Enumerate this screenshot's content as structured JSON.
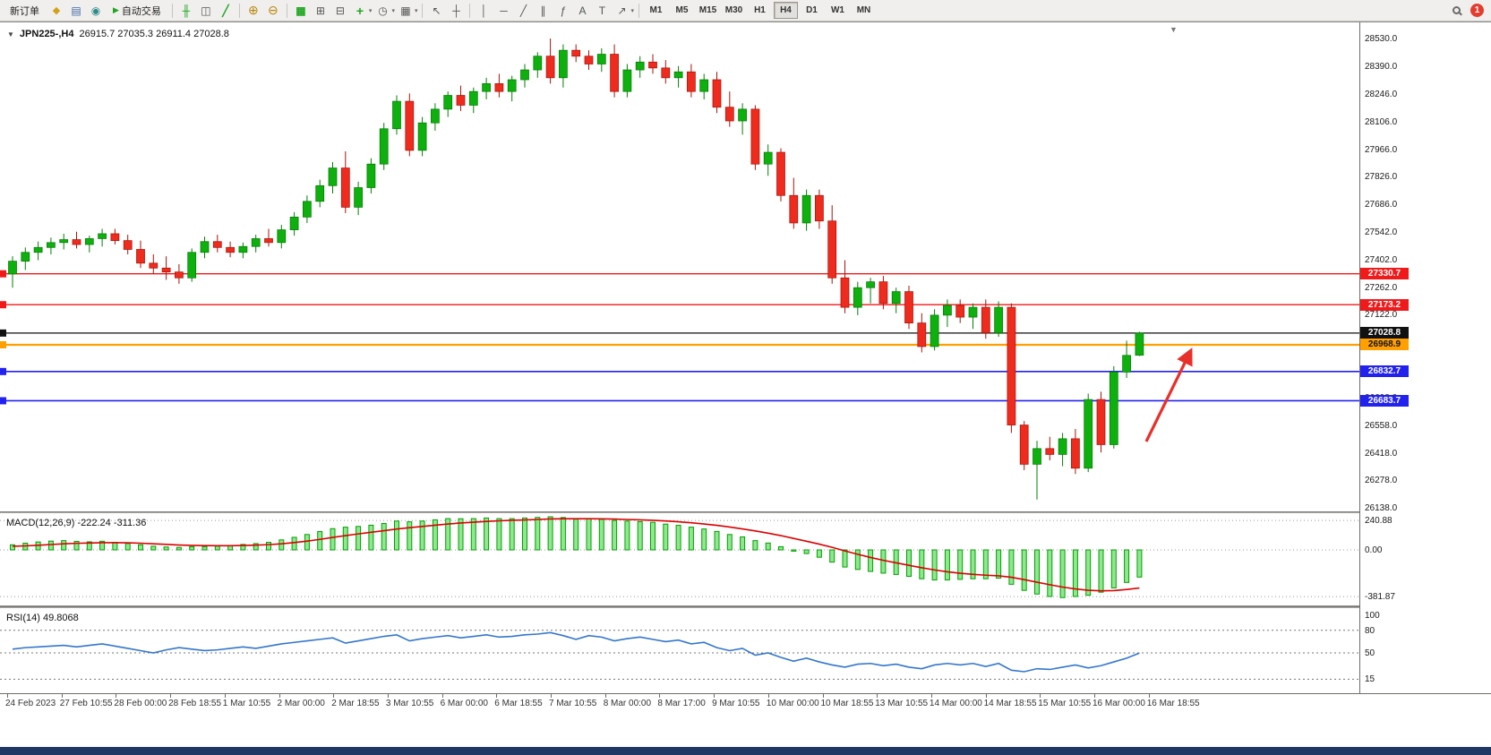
{
  "toolbar": {
    "new_order": "新订单",
    "autotrading": "自动交易",
    "timeframes": [
      "M1",
      "M5",
      "M15",
      "M30",
      "H1",
      "H4",
      "D1",
      "W1",
      "MN"
    ],
    "active_timeframe": "H4",
    "notification_badge": "1"
  },
  "icons": {
    "chart_menu": "▼",
    "market_watch": "◆",
    "data_window": "▤",
    "navigator": "◉",
    "autotrading_play": "▶",
    "bar_chart": "╫",
    "candlestick": "◫",
    "line_chart": "╱",
    "zoom_in": "⊕",
    "zoom_out": "⊖",
    "tile_windows": "⊞",
    "cascade_windows": "⊟",
    "indicators_plus": "+",
    "periods_clock": "◷",
    "template": "▦",
    "cursor": "↖",
    "crosshair": "┼",
    "vline": "│",
    "hline": "─",
    "trendline": "╱",
    "channel": "∥",
    "fibonacci": "ƒ",
    "text_tool": "A",
    "label_tool": "T",
    "arrows_tool": "↗",
    "dropdown": "▾",
    "shift_marker": "▼"
  },
  "chart": {
    "title_symbol": "JPN225-,H4",
    "title_ohlc": "26915.7 27035.3 26911.4 27028.8",
    "price_axis_values": [
      28530,
      28390,
      28246,
      28106,
      27966,
      27826,
      27686,
      27542,
      27402,
      27262,
      27122,
      26978,
      26838,
      26698,
      26558,
      26418,
      26278,
      26138
    ],
    "price_axis_labels": [
      "28530.0",
      "28390.0",
      "28246.0",
      "28106.0",
      "27966.0",
      "27826.0",
      "27686.0",
      "27542.0",
      "27402.0",
      "27262.0",
      "27122.0",
      "26978.0",
      "26838.0",
      "26698.0",
      "26558.0",
      "26418.0",
      "26278.0",
      "26138.0"
    ],
    "time_axis_labels": [
      "24 Feb 2023",
      "27 Feb 10:55",
      "28 Feb 00:00",
      "28 Feb 18:55",
      "1 Mar 10:55",
      "2 Mar 00:00",
      "2 Mar 18:55",
      "3 Mar 10:55",
      "6 Mar 00:00",
      "6 Mar 18:55",
      "7 Mar 10:55",
      "8 Mar 00:00",
      "8 Mar 17:00",
      "9 Mar 10:55",
      "10 Mar 00:00",
      "10 Mar 18:55",
      "13 Mar 10:55",
      "14 Mar 00:00",
      "14 Mar 18:55",
      "15 Mar 10:55",
      "16 Mar 00:00",
      "16 Mar 18:55"
    ],
    "hlines": [
      {
        "price": 27330.7,
        "label": "27330.7",
        "color": "#f11a1a",
        "width": 1.4
      },
      {
        "price": 27173.2,
        "label": "27173.2",
        "color": "#f11a1a",
        "width": 1.4
      },
      {
        "price": 27028.8,
        "label": "27028.8",
        "color": "#111111",
        "width": 1.2
      },
      {
        "price": 26968.9,
        "label": "26968.9",
        "color": "#ff9f00",
        "width": 2.2
      },
      {
        "price": 26832.7,
        "label": "26832.7",
        "color": "#2222ee",
        "width": 1.6
      },
      {
        "price": 26683.7,
        "label": "26683.7",
        "color": "#2222ee",
        "width": 1.6
      }
    ],
    "colors": {
      "up": "#0db00d",
      "up_dark": "#067d06",
      "down": "#ef2b1e",
      "down_dark": "#a81409",
      "macd_hist_fill": "#8fe88f",
      "macd_hist_stroke": "#00a000",
      "macd_signal": "#dd0000",
      "rsi_line": "#3377cc",
      "arrow": "#e8302a",
      "grid_dotted": "#999999"
    }
  },
  "macd_panel": {
    "label": "MACD(12,26,9)",
    "value_main": "-222.24",
    "value_signal": "-311.36",
    "axis_labels": [
      "240.88",
      "0.00",
      "-381.87"
    ],
    "axis_values": [
      240.88,
      0,
      -381.87
    ]
  },
  "rsi_panel": {
    "label": "RSI(14)",
    "value": "49.8068",
    "axis_labels": [
      "100",
      "80",
      "50",
      "15"
    ],
    "axis_values": [
      100,
      80,
      50,
      15
    ],
    "levels": [
      80,
      50,
      15
    ]
  },
  "chart_data": [
    {
      "type": "candlestick",
      "symbol": "JPN225-",
      "timeframe": "H4",
      "title": "JPN225-,H4",
      "open": 26915.7,
      "high": 27035.3,
      "low": 26911.4,
      "close": 27028.8,
      "ylim": [
        26138,
        28530
      ],
      "x_labels": [
        "24 Feb 2023",
        "27 Feb 10:55",
        "28 Feb 00:00",
        "28 Feb 18:55",
        "1 Mar 10:55",
        "2 Mar 00:00",
        "2 Mar 18:55",
        "3 Mar 10:55",
        "6 Mar 00:00",
        "6 Mar 18:55",
        "7 Mar 10:55",
        "8 Mar 00:00",
        "8 Mar 17:00",
        "9 Mar 10:55",
        "10 Mar 00:00",
        "10 Mar 18:55",
        "13 Mar 10:55",
        "14 Mar 00:00",
        "14 Mar 18:55",
        "15 Mar 10:55",
        "16 Mar 00:00",
        "16 Mar 18:55"
      ],
      "ohlc": [
        [
          27330,
          27420,
          27260,
          27395
        ],
        [
          27395,
          27465,
          27350,
          27440
        ],
        [
          27440,
          27495,
          27400,
          27465
        ],
        [
          27465,
          27515,
          27430,
          27490
        ],
        [
          27490,
          27535,
          27455,
          27505
        ],
        [
          27505,
          27545,
          27460,
          27480
        ],
        [
          27480,
          27525,
          27440,
          27510
        ],
        [
          27510,
          27560,
          27470,
          27535
        ],
        [
          27535,
          27560,
          27480,
          27500
        ],
        [
          27500,
          27530,
          27430,
          27455
        ],
        [
          27455,
          27500,
          27360,
          27385
        ],
        [
          27385,
          27430,
          27330,
          27360
        ],
        [
          27360,
          27420,
          27300,
          27340
        ],
        [
          27340,
          27380,
          27280,
          27310
        ],
        [
          27310,
          27460,
          27290,
          27440
        ],
        [
          27440,
          27520,
          27410,
          27495
        ],
        [
          27495,
          27530,
          27440,
          27465
        ],
        [
          27465,
          27495,
          27415,
          27440
        ],
        [
          27440,
          27490,
          27410,
          27470
        ],
        [
          27470,
          27530,
          27440,
          27510
        ],
        [
          27510,
          27560,
          27470,
          27490
        ],
        [
          27490,
          27580,
          27460,
          27555
        ],
        [
          27555,
          27645,
          27525,
          27620
        ],
        [
          27620,
          27730,
          27590,
          27700
        ],
        [
          27700,
          27810,
          27670,
          27780
        ],
        [
          27780,
          27900,
          27740,
          27870
        ],
        [
          27870,
          27955,
          27640,
          27670
        ],
        [
          27670,
          27800,
          27630,
          27770
        ],
        [
          27770,
          27920,
          27740,
          27890
        ],
        [
          27890,
          28100,
          27860,
          28070
        ],
        [
          28070,
          28240,
          28040,
          28210
        ],
        [
          28210,
          28250,
          27930,
          27960
        ],
        [
          27960,
          28130,
          27930,
          28100
        ],
        [
          28100,
          28200,
          28060,
          28170
        ],
        [
          28170,
          28260,
          28130,
          28240
        ],
        [
          28240,
          28290,
          28160,
          28190
        ],
        [
          28190,
          28280,
          28150,
          28260
        ],
        [
          28260,
          28330,
          28220,
          28300
        ],
        [
          28300,
          28350,
          28230,
          28260
        ],
        [
          28260,
          28340,
          28210,
          28320
        ],
        [
          28320,
          28400,
          28280,
          28370
        ],
        [
          28370,
          28460,
          28330,
          28440
        ],
        [
          28440,
          28530,
          28300,
          28330
        ],
        [
          28330,
          28500,
          28280,
          28470
        ],
        [
          28470,
          28500,
          28410,
          28440
        ],
        [
          28440,
          28470,
          28370,
          28400
        ],
        [
          28400,
          28480,
          28360,
          28450
        ],
        [
          28450,
          28500,
          28230,
          28260
        ],
        [
          28260,
          28400,
          28230,
          28370
        ],
        [
          28370,
          28440,
          28330,
          28410
        ],
        [
          28410,
          28450,
          28350,
          28380
        ],
        [
          28380,
          28420,
          28300,
          28330
        ],
        [
          28330,
          28390,
          28280,
          28360
        ],
        [
          28360,
          28400,
          28230,
          28260
        ],
        [
          28260,
          28350,
          28220,
          28320
        ],
        [
          28320,
          28360,
          28150,
          28180
        ],
        [
          28180,
          28260,
          28080,
          28110
        ],
        [
          28110,
          28200,
          28040,
          28170
        ],
        [
          28170,
          28190,
          27860,
          27890
        ],
        [
          27890,
          27990,
          27830,
          27950
        ],
        [
          27950,
          27970,
          27700,
          27730
        ],
        [
          27730,
          27820,
          27560,
          27590
        ],
        [
          27590,
          27760,
          27550,
          27730
        ],
        [
          27730,
          27760,
          27560,
          27600
        ],
        [
          27600,
          27680,
          27280,
          27310
        ],
        [
          27310,
          27400,
          27130,
          27160
        ],
        [
          27160,
          27290,
          27120,
          27260
        ],
        [
          27260,
          27310,
          27180,
          27290
        ],
        [
          27290,
          27320,
          27150,
          27180
        ],
        [
          27180,
          27260,
          27130,
          27240
        ],
        [
          27240,
          27270,
          27050,
          27080
        ],
        [
          27080,
          27130,
          26930,
          26960
        ],
        [
          26960,
          27150,
          26940,
          27120
        ],
        [
          27120,
          27200,
          27060,
          27170
        ],
        [
          27170,
          27200,
          27080,
          27110
        ],
        [
          27110,
          27180,
          27050,
          27160
        ],
        [
          27160,
          27200,
          27000,
          27030
        ],
        [
          27030,
          27190,
          27010,
          27160
        ],
        [
          27160,
          27180,
          26520,
          26560
        ],
        [
          26560,
          26580,
          26330,
          26360
        ],
        [
          26360,
          26480,
          26180,
          26440
        ],
        [
          26440,
          26500,
          26380,
          26410
        ],
        [
          26410,
          26520,
          26350,
          26490
        ],
        [
          26490,
          26540,
          26310,
          26340
        ],
        [
          26340,
          26720,
          26320,
          26690
        ],
        [
          26690,
          26730,
          26420,
          26460
        ],
        [
          26460,
          26860,
          26440,
          26830
        ],
        [
          26830,
          26990,
          26800,
          26915
        ],
        [
          26915.7,
          27035.3,
          26911.4,
          27028.8
        ]
      ],
      "hlines": [
        27330.7,
        27173.2,
        27028.8,
        26968.9,
        26832.7,
        26683.7
      ],
      "annotation": {
        "type": "arrow-up-right",
        "color": "#e8302a"
      }
    },
    {
      "type": "bar",
      "name": "MACD(12,26,9)",
      "current_macd": -222.24,
      "current_signal": -311.36,
      "ylim": [
        -430,
        300
      ],
      "axis_ticks": [
        240.88,
        0.0,
        -381.87
      ],
      "values": [
        42,
        55,
        65,
        72,
        76,
        70,
        66,
        71,
        62,
        52,
        42,
        30,
        24,
        20,
        26,
        27,
        31,
        36,
        45,
        52,
        62,
        82,
        103,
        126,
        150,
        174,
        186,
        192,
        202,
        216,
        236,
        230,
        236,
        246,
        256,
        255,
        256,
        261,
        256,
        256,
        261,
        266,
        271,
        265,
        251,
        256,
        250,
        241,
        236,
        231,
        226,
        211,
        201,
        186,
        171,
        151,
        126,
        106,
        76,
        56,
        26,
        -10,
        -30,
        -60,
        -100,
        -140,
        -160,
        -176,
        -190,
        -201,
        -216,
        -236,
        -246,
        -246,
        -241,
        -236,
        -236,
        -231,
        -281,
        -331,
        -361,
        -381,
        -390,
        -381,
        -371,
        -346,
        -311,
        -266,
        -222.24
      ],
      "signal": [
        30,
        33,
        38,
        44,
        50,
        54,
        56,
        59,
        59,
        58,
        55,
        50,
        45,
        40,
        37,
        35,
        34,
        34,
        36,
        39,
        43,
        50,
        60,
        72,
        86,
        102,
        117,
        131,
        144,
        157,
        171,
        182,
        192,
        202,
        212,
        220,
        227,
        233,
        238,
        242,
        245,
        249,
        253,
        255,
        255,
        255,
        254,
        252,
        249,
        246,
        242,
        237,
        230,
        222,
        212,
        201,
        187,
        172,
        155,
        137,
        117,
        94,
        71,
        47,
        21,
        -8,
        -36,
        -62,
        -85,
        -106,
        -126,
        -146,
        -164,
        -179,
        -191,
        -200,
        -207,
        -212,
        -224,
        -243,
        -264,
        -285,
        -304,
        -319,
        -330,
        -335,
        -333,
        -324,
        -311.36
      ]
    },
    {
      "type": "line",
      "name": "RSI(14)",
      "current": 49.8068,
      "ylim": [
        0,
        100
      ],
      "levels": [
        80,
        50,
        15
      ],
      "axis_ticks": [
        100,
        80,
        50,
        15
      ],
      "values": [
        55,
        57,
        58,
        59,
        60,
        58,
        60,
        62,
        59,
        56,
        53,
        50,
        54,
        57,
        55,
        53,
        54,
        56,
        58,
        56,
        59,
        62,
        64,
        66,
        68,
        70,
        63,
        66,
        69,
        72,
        74,
        66,
        69,
        71,
        73,
        70,
        72,
        74,
        71,
        72,
        74,
        75,
        77,
        73,
        68,
        73,
        71,
        66,
        69,
        71,
        68,
        65,
        67,
        62,
        64,
        57,
        53,
        56,
        47,
        50,
        44,
        39,
        43,
        38,
        34,
        31,
        35,
        36,
        33,
        35,
        31,
        29,
        34,
        36,
        34,
        36,
        32,
        36,
        27,
        25,
        29,
        28,
        31,
        34,
        30,
        33,
        38,
        43,
        49.8068
      ]
    }
  ]
}
